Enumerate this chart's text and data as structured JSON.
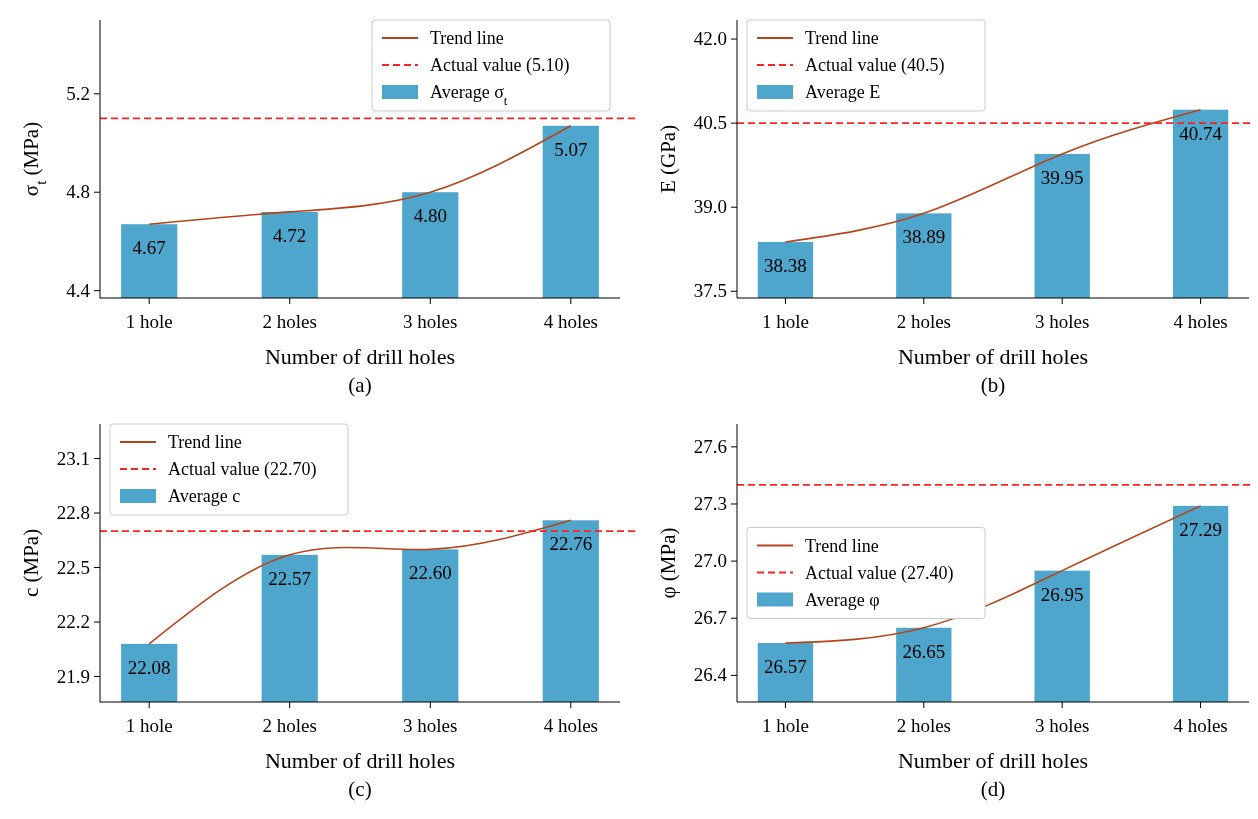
{
  "chart_data": [
    {
      "type": "bar",
      "categories": [
        "1 hole",
        "2 holes",
        "3 holes",
        "4 holes"
      ],
      "xlabel": "Number of drill holes",
      "ylabel": "σ$_{t}$ (MPa)",
      "ylim": [
        4.37,
        5.5
      ],
      "yticks": [
        4.4,
        4.8,
        5.2
      ],
      "legend": "top right",
      "annotations": [
        "(a)"
      ],
      "series": [
        {
          "type": "line",
          "name": "Trend line",
          "color": "#b5441a",
          "values": [
            4.67,
            4.72,
            4.8,
            5.07
          ]
        },
        {
          "type": "bar",
          "name": "Average σ$_{t}$",
          "color": "#4fa6cc",
          "values": [
            4.67,
            4.72,
            4.8,
            5.07
          ],
          "value_labels": [
            "4.67",
            "4.72",
            "4.80",
            "5.07"
          ]
        }
      ],
      "ref_lines": [
        {
          "axis": "y",
          "value": 5.1,
          "label": "Actual value (5.10)",
          "color": "#ff2020",
          "line_style": "dashed"
        }
      ]
    },
    {
      "type": "bar",
      "categories": [
        "1 hole",
        "2 holes",
        "3 holes",
        "4 holes"
      ],
      "xlabel": "Number of drill holes",
      "ylabel": "E (GPa)",
      "ylim": [
        37.38,
        42.34
      ],
      "yticks": [
        {
          "value": 37.5,
          "label": "37.5"
        },
        {
          "value": 39,
          "label": "39.0"
        },
        {
          "value": 40.5,
          "label": "40.5"
        },
        {
          "value": 42,
          "label": "42.0"
        }
      ],
      "legend": "top left",
      "annotations": [
        "(b)"
      ],
      "series": [
        {
          "type": "line",
          "name": "Trend line",
          "color": "#b5441a",
          "values": [
            38.38,
            38.89,
            39.95,
            40.74
          ]
        },
        {
          "type": "bar",
          "name": "Average E",
          "color": "#4fa6cc",
          "values": [
            38.38,
            38.89,
            39.95,
            40.74
          ],
          "value_labels": [
            "38.38",
            "38.89",
            "39.95",
            "40.74"
          ]
        }
      ],
      "ref_lines": [
        {
          "axis": "y",
          "value": 40.5,
          "label": "Actual value (40.5)",
          "color": "#ff2020",
          "line_style": "dashed"
        }
      ]
    },
    {
      "type": "bar",
      "categories": [
        "1 hole",
        "2 holes",
        "3 holes",
        "4 holes"
      ],
      "xlabel": "Number of drill holes",
      "ylabel": "c (MPa)",
      "ylim": [
        21.76,
        23.29
      ],
      "yticks": [
        21.9,
        22.2,
        22.5,
        22.8,
        23.1
      ],
      "legend": "top left",
      "annotations": [
        "(c)"
      ],
      "series": [
        {
          "type": "line",
          "name": "Trend line",
          "color": "#b5441a",
          "values": [
            22.08,
            22.57,
            22.6,
            22.76
          ]
        },
        {
          "type": "bar",
          "name": "Average c",
          "color": "#4fa6cc",
          "values": [
            22.08,
            22.57,
            22.6,
            22.76
          ],
          "value_labels": [
            "22.08",
            "22.57",
            "22.60",
            "22.76"
          ]
        }
      ],
      "ref_lines": [
        {
          "axis": "y",
          "value": 22.7,
          "label": "Actual value (22.70)",
          "color": "#ff2020",
          "line_style": "dashed"
        }
      ]
    },
    {
      "type": "bar",
      "categories": [
        "1 hole",
        "2 holes",
        "3 holes",
        "4 holes"
      ],
      "xlabel": "Number of drill holes",
      "ylabel": "φ (MPa)",
      "ylim": [
        26.26,
        27.72
      ],
      "yticks": [
        26.4,
        26.7,
        {
          "value": 27,
          "label": "27.0"
        },
        27.3,
        27.6
      ],
      "legend": "left",
      "annotations": [
        "(d)"
      ],
      "series": [
        {
          "type": "line",
          "name": "Trend line",
          "color": "#b5441a",
          "values": [
            26.57,
            26.65,
            26.95,
            27.29
          ]
        },
        {
          "type": "bar",
          "name": "Average φ",
          "color": "#4fa6cc",
          "values": [
            26.57,
            26.65,
            26.95,
            27.29
          ],
          "value_labels": [
            "26.57",
            "26.65",
            "26.95",
            "27.29"
          ]
        }
      ],
      "ref_lines": [
        {
          "axis": "y",
          "value": 27.4,
          "label": "Actual value (27.40)",
          "color": "#ff2020",
          "line_style": "dashed"
        }
      ]
    }
  ]
}
